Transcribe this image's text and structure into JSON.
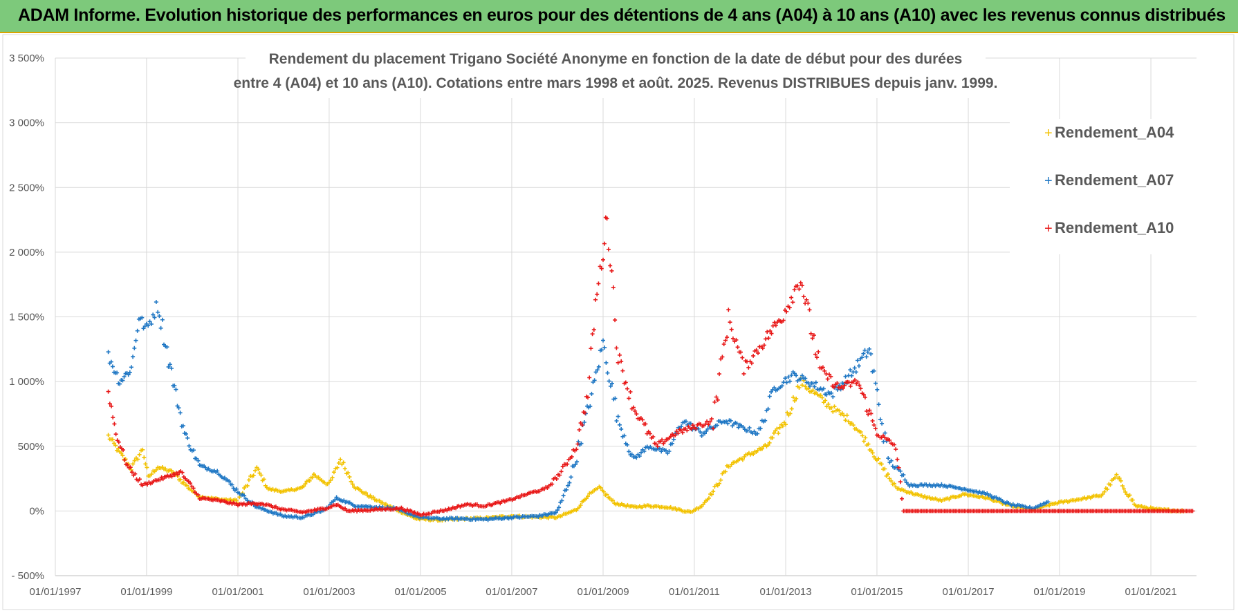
{
  "banner": {
    "title": "ADAM Informe. Evolution historique des performances en euros pour des détentions de 4 ans (A04) à 10 ans (A10) avec les revenus connus distribués"
  },
  "colors": {
    "banner_bg": "#7dc97b",
    "A04": "#f2c200",
    "A07": "#1f77c4",
    "A10": "#e81818"
  },
  "chart_data": {
    "type": "scatter",
    "title_lines": [
      "Rendement du placement Trigano Société Anonyme en fonction de la date de début pour des durées",
      "entre 4 (A04) et 10 ans (A10).  Cotations entre mars 1998 et août. 2025. Revenus DISTRIBUES depuis janv. 1999."
    ],
    "xlabel": "",
    "ylabel": "",
    "x_range": [
      "1997-01-01",
      "2022-01-01"
    ],
    "ylim": [
      -500,
      3500
    ],
    "y_ticks": [
      -500,
      0,
      500,
      1000,
      1500,
      2000,
      2500,
      3000,
      3500
    ],
    "y_tick_labels": [
      "- 500%",
      "0%",
      "500%",
      "1 000%",
      "1 500%",
      "2 000%",
      "2 500%",
      "3 000%",
      "3 500%"
    ],
    "x_ticks": [
      "1997-01-01",
      "1999-01-01",
      "2001-01-01",
      "2003-01-01",
      "2005-01-01",
      "2007-01-01",
      "2009-01-01",
      "2011-01-01",
      "2013-01-01",
      "2015-01-01",
      "2017-01-01",
      "2019-01-01",
      "2021-01-01"
    ],
    "x_tick_labels": [
      "01/01/1997",
      "01/01/1999",
      "01/01/2001",
      "01/01/2003",
      "01/01/2005",
      "01/01/2007",
      "01/01/2009",
      "01/01/2011",
      "01/01/2013",
      "01/01/2015",
      "01/01/2017",
      "01/01/2019",
      "01/01/2021"
    ],
    "grid": true,
    "legend_position": "top-right",
    "marker": "+",
    "series": [
      {
        "name": "Rendement_A04",
        "color": "#f2c200",
        "points": [
          [
            "1998-03-01",
            580
          ],
          [
            "1998-06-01",
            450
          ],
          [
            "1998-09-01",
            330
          ],
          [
            "1998-12-01",
            480
          ],
          [
            "1999-01-15",
            260
          ],
          [
            "1999-04-01",
            340
          ],
          [
            "1999-08-01",
            300
          ],
          [
            "1999-12-01",
            180
          ],
          [
            "2000-03-01",
            110
          ],
          [
            "2000-08-01",
            90
          ],
          [
            "2001-01-01",
            80
          ],
          [
            "2001-06-01",
            330
          ],
          [
            "2001-09-01",
            170
          ],
          [
            "2002-01-01",
            150
          ],
          [
            "2002-06-01",
            180
          ],
          [
            "2002-09-01",
            280
          ],
          [
            "2003-01-01",
            200
          ],
          [
            "2003-04-01",
            400
          ],
          [
            "2003-08-01",
            180
          ],
          [
            "2004-01-01",
            90
          ],
          [
            "2004-06-01",
            20
          ],
          [
            "2004-12-01",
            -60
          ],
          [
            "2005-06-01",
            -70
          ],
          [
            "2006-01-01",
            -60
          ],
          [
            "2006-06-01",
            -55
          ],
          [
            "2007-01-01",
            -40
          ],
          [
            "2007-06-01",
            -45
          ],
          [
            "2008-01-01",
            -50
          ],
          [
            "2008-06-01",
            10
          ],
          [
            "2008-09-01",
            120
          ],
          [
            "2008-12-01",
            180
          ],
          [
            "2009-04-01",
            60
          ],
          [
            "2009-09-01",
            30
          ],
          [
            "2010-01-01",
            40
          ],
          [
            "2010-06-01",
            30
          ],
          [
            "2010-12-01",
            -10
          ],
          [
            "2011-03-01",
            40
          ],
          [
            "2011-06-01",
            150
          ],
          [
            "2011-10-01",
            350
          ],
          [
            "2012-03-01",
            430
          ],
          [
            "2012-08-01",
            500
          ],
          [
            "2013-01-01",
            700
          ],
          [
            "2013-05-01",
            1000
          ],
          [
            "2013-09-01",
            900
          ],
          [
            "2014-01-01",
            800
          ],
          [
            "2014-06-01",
            700
          ],
          [
            "2014-10-01",
            550
          ],
          [
            "2015-01-01",
            400
          ],
          [
            "2015-06-01",
            180
          ],
          [
            "2015-12-01",
            120
          ],
          [
            "2016-06-01",
            80
          ],
          [
            "2016-12-01",
            130
          ],
          [
            "2017-06-01",
            100
          ],
          [
            "2017-12-01",
            40
          ],
          [
            "2018-06-01",
            10
          ],
          [
            "2018-12-01",
            60
          ],
          [
            "2019-06-01",
            90
          ],
          [
            "2019-12-01",
            120
          ],
          [
            "2020-04-01",
            270
          ],
          [
            "2020-09-01",
            40
          ],
          [
            "2021-03-01",
            10
          ],
          [
            "2021-10-01",
            0
          ]
        ]
      },
      {
        "name": "Rendement_A07",
        "color": "#1f77c4",
        "points": [
          [
            "1998-03-01",
            1200
          ],
          [
            "1998-06-01",
            1000
          ],
          [
            "1998-09-01",
            1100
          ],
          [
            "1998-11-01",
            1500
          ],
          [
            "1999-01-01",
            1400
          ],
          [
            "1999-04-01",
            1600
          ],
          [
            "1999-08-01",
            1000
          ],
          [
            "1999-11-01",
            600
          ],
          [
            "2000-03-01",
            350
          ],
          [
            "2000-08-01",
            300
          ],
          [
            "2001-01-01",
            150
          ],
          [
            "2001-06-01",
            30
          ],
          [
            "2002-01-01",
            -40
          ],
          [
            "2002-06-01",
            -50
          ],
          [
            "2002-12-01",
            10
          ],
          [
            "2003-03-01",
            100
          ],
          [
            "2003-08-01",
            40
          ],
          [
            "2004-01-01",
            30
          ],
          [
            "2004-06-01",
            20
          ],
          [
            "2005-01-01",
            -50
          ],
          [
            "2005-06-01",
            -60
          ],
          [
            "2006-01-01",
            -60
          ],
          [
            "2006-06-01",
            -65
          ],
          [
            "2007-01-01",
            -50
          ],
          [
            "2007-08-01",
            -40
          ],
          [
            "2008-01-01",
            -10
          ],
          [
            "2008-05-01",
            300
          ],
          [
            "2008-10-01",
            900
          ],
          [
            "2009-01-01",
            1300
          ],
          [
            "2009-05-01",
            700
          ],
          [
            "2009-09-01",
            400
          ],
          [
            "2010-01-01",
            500
          ],
          [
            "2010-06-01",
            450
          ],
          [
            "2010-10-01",
            700
          ],
          [
            "2011-03-01",
            600
          ],
          [
            "2011-09-01",
            700
          ],
          [
            "2012-01-01",
            650
          ],
          [
            "2012-06-01",
            600
          ],
          [
            "2012-10-01",
            950
          ],
          [
            "2013-03-01",
            1050
          ],
          [
            "2013-07-01",
            1000
          ],
          [
            "2014-01-01",
            900
          ],
          [
            "2014-06-01",
            1050
          ],
          [
            "2014-11-01",
            1250
          ],
          [
            "2015-04-01",
            400
          ],
          [
            "2015-10-01",
            200
          ],
          [
            "2016-06-01",
            200
          ],
          [
            "2016-12-01",
            170
          ],
          [
            "2017-06-01",
            130
          ],
          [
            "2017-12-01",
            50
          ],
          [
            "2018-06-01",
            20
          ],
          [
            "2018-10-01",
            70
          ]
        ]
      },
      {
        "name": "Rendement_A10",
        "color": "#e81818",
        "points": [
          [
            "1998-03-01",
            930
          ],
          [
            "1998-05-01",
            600
          ],
          [
            "1998-08-01",
            350
          ],
          [
            "1998-12-01",
            200
          ],
          [
            "1999-05-01",
            250
          ],
          [
            "1999-10-01",
            300
          ],
          [
            "2000-03-01",
            100
          ],
          [
            "2000-08-01",
            80
          ],
          [
            "2001-01-01",
            50
          ],
          [
            "2001-07-01",
            60
          ],
          [
            "2002-01-01",
            10
          ],
          [
            "2002-06-01",
            -10
          ],
          [
            "2002-12-01",
            20
          ],
          [
            "2003-03-01",
            50
          ],
          [
            "2003-06-01",
            0
          ],
          [
            "2004-01-01",
            10
          ],
          [
            "2004-08-01",
            20
          ],
          [
            "2005-01-01",
            -30
          ],
          [
            "2005-08-01",
            10
          ],
          [
            "2006-01-01",
            50
          ],
          [
            "2006-06-01",
            40
          ],
          [
            "2006-12-01",
            80
          ],
          [
            "2007-06-01",
            140
          ],
          [
            "2007-10-01",
            170
          ],
          [
            "2008-02-01",
            300
          ],
          [
            "2008-06-01",
            500
          ],
          [
            "2008-09-01",
            900
          ],
          [
            "2008-11-01",
            1600
          ],
          [
            "2009-01-01",
            2000
          ],
          [
            "2009-02-01",
            2300
          ],
          [
            "2009-05-01",
            1200
          ],
          [
            "2009-09-01",
            800
          ],
          [
            "2010-03-01",
            500
          ],
          [
            "2010-08-01",
            600
          ],
          [
            "2011-01-01",
            650
          ],
          [
            "2011-06-01",
            700
          ],
          [
            "2011-10-01",
            1500
          ],
          [
            "2012-02-01",
            1100
          ],
          [
            "2012-07-01",
            1300
          ],
          [
            "2012-12-01",
            1500
          ],
          [
            "2013-05-01",
            1800
          ],
          [
            "2013-10-01",
            1100
          ],
          [
            "2014-03-01",
            950
          ],
          [
            "2014-08-01",
            1000
          ],
          [
            "2015-01-01",
            600
          ],
          [
            "2015-06-01",
            500
          ],
          [
            "2015-08-01",
            0
          ],
          [
            "2017-06-01",
            0
          ],
          [
            "2019-06-01",
            0
          ],
          [
            "2021-12-01",
            0
          ]
        ]
      }
    ]
  }
}
